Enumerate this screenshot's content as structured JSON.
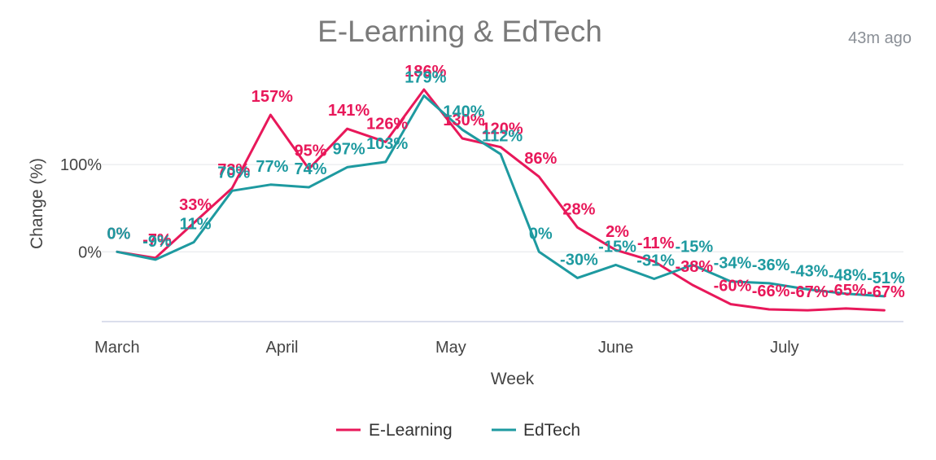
{
  "header": {
    "title": "E-Learning & EdTech",
    "updated": "43m ago"
  },
  "colors": {
    "e_learning": "#e8185a",
    "edtech": "#1e9aa0",
    "grid": "#e4e6ea",
    "axis_line": "#cfd3e6"
  },
  "chart_data": {
    "type": "line",
    "title": "E-Learning & EdTech",
    "xlabel": "Week",
    "ylabel": "Change (%)",
    "x_ticks": [
      "March",
      "April",
      "May",
      "June",
      "July"
    ],
    "x_tick_weeks": [
      0,
      4.3,
      8.7,
      13.0,
      17.4
    ],
    "y_ticks": [
      0,
      100
    ],
    "y_tick_labels": [
      "0%",
      "100%"
    ],
    "ylim": [
      -80,
      200
    ],
    "xlim": [
      -0.4,
      20.5
    ],
    "grid": true,
    "legend": "bottom-center",
    "series": [
      {
        "name": "E-Learning",
        "x": [
          0,
          1,
          2,
          3,
          4,
          5,
          6,
          7,
          8,
          9,
          10,
          11,
          12,
          13,
          14,
          15,
          16,
          17,
          18,
          19,
          20
        ],
        "values": [
          0,
          -7,
          33,
          73,
          157,
          95,
          141,
          126,
          186,
          130,
          120,
          86,
          28,
          2,
          -11,
          -38,
          -60,
          -66,
          -67,
          -65,
          -67
        ],
        "labels": [
          "0%",
          "-7%",
          "33%",
          "73%",
          "157%",
          "95%",
          "141%",
          "126%",
          "186%",
          "130%",
          "120%",
          "86%",
          "28%",
          "2%",
          "-11%",
          "-38%",
          "-60%",
          "-66%",
          "-67%",
          "-65%",
          "-67%"
        ]
      },
      {
        "name": "EdTech",
        "x": [
          0,
          1,
          2,
          3,
          4,
          5,
          6,
          7,
          8,
          9,
          10,
          11,
          12,
          13,
          14,
          15,
          16,
          17,
          18,
          19,
          20
        ],
        "values": [
          0,
          -9,
          11,
          70,
          77,
          74,
          97,
          103,
          179,
          140,
          112,
          0,
          -30,
          -15,
          -31,
          -15,
          -34,
          -36,
          -43,
          -48,
          -51
        ],
        "labels": [
          "0%",
          "-9%",
          "11%",
          "70%",
          "77%",
          "74%",
          "97%",
          "103%",
          "179%",
          "140%",
          "112%",
          "0%",
          "-30%",
          "-15%",
          "-31%",
          "-15%",
          "-34%",
          "-36%",
          "-43%",
          "-48%",
          "-51%"
        ]
      }
    ]
  }
}
